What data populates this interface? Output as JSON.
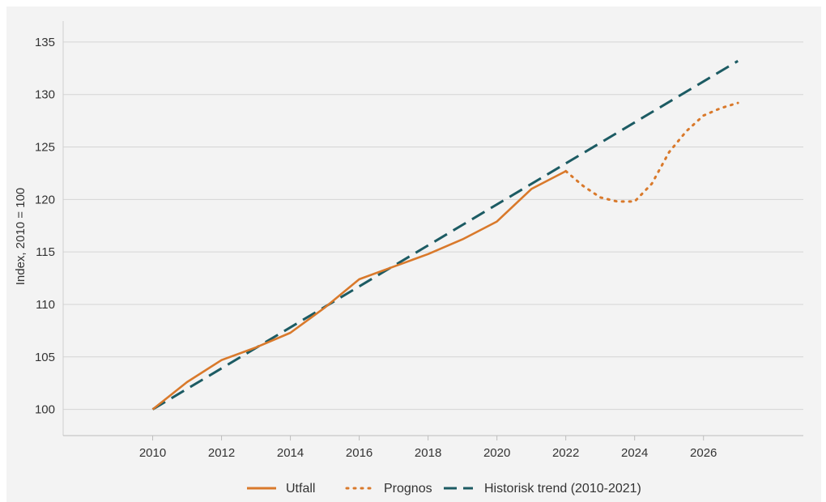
{
  "chart_data": {
    "type": "line",
    "title": "",
    "xlabel": "",
    "ylabel": "Index, 2010 = 100",
    "xlim": [
      2007.4,
      2028.9
    ],
    "ylim": [
      97.5,
      137
    ],
    "x_ticks": [
      "2010",
      "2012",
      "2014",
      "2016",
      "2018",
      "2020",
      "2022",
      "2024",
      "2026"
    ],
    "y_ticks": [
      "100",
      "105",
      "110",
      "115",
      "120",
      "125",
      "130",
      "135"
    ],
    "grid": "horizontal",
    "legend_position": "bottom-center",
    "series": [
      {
        "name": "Utfall",
        "style": "solid",
        "color": "#d9792b",
        "x": [
          2010,
          2011,
          2012,
          2013,
          2014,
          2015,
          2016,
          2017,
          2018,
          2019,
          2020,
          2021,
          2022
        ],
        "y": [
          100,
          102.6,
          104.7,
          105.9,
          107.3,
          109.7,
          112.4,
          113.6,
          114.8,
          116.2,
          117.9,
          121.0,
          122.7
        ]
      },
      {
        "name": "Prognos",
        "style": "dotted",
        "color": "#d9792b",
        "x": [
          2022,
          2022.5,
          2023,
          2023.5,
          2024,
          2024.5,
          2025,
          2025.5,
          2026,
          2026.5,
          2027
        ],
        "y": [
          122.7,
          121.3,
          120.2,
          119.8,
          119.8,
          121.5,
          124.5,
          126.5,
          128.0,
          128.7,
          129.2
        ]
      },
      {
        "name": "Historisk trend (2010-2021)",
        "style": "dashed",
        "color": "#1c5b63",
        "x": [
          2010,
          2027
        ],
        "y": [
          100,
          133.2
        ]
      }
    ]
  }
}
